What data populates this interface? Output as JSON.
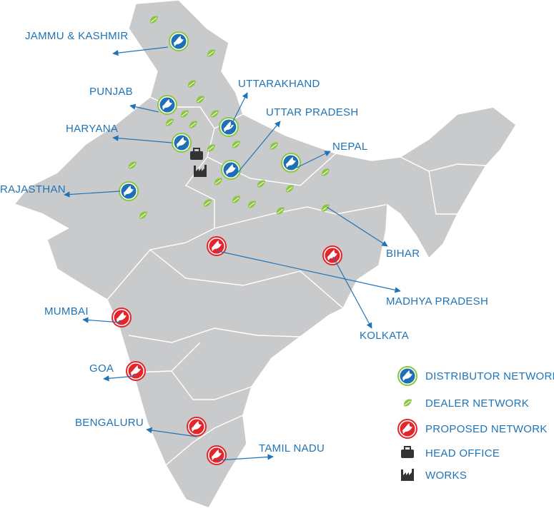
{
  "map": {
    "labels": [
      "JAMMU & KASHMIR",
      "PUNJAB",
      "HARYANA",
      "RAJASTHAN",
      "UTTARAKHAND",
      "UTTAR PRADESH",
      "NEPAL",
      "BIHAR",
      "MADHYA PRADESH",
      "KOLKATA",
      "MUMBAI",
      "GOA",
      "BENGALURU",
      "TAMIL NADU"
    ]
  },
  "legend": {
    "items": [
      "DISTRIBUTOR NETWORK",
      "DEALER NETWORK",
      "PROPOSED NETWORK",
      "HEAD OFFICE",
      "WORKS"
    ]
  }
}
